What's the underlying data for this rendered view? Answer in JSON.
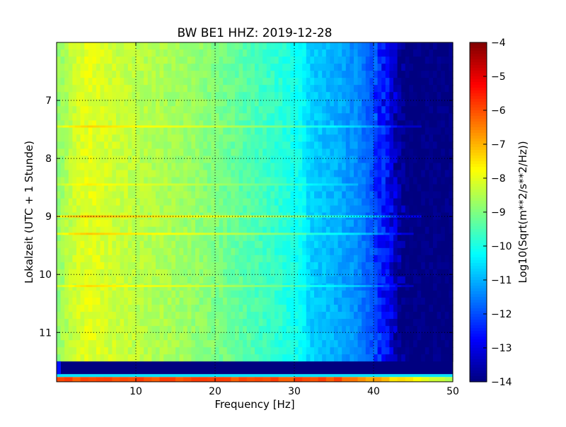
{
  "chart_data": {
    "type": "heatmap",
    "title": "BW BE1 HHZ: 2019-12-28",
    "xlabel": "Frequency [Hz]",
    "ylabel": "Lokalzeit (UTC + 1 Stunde)",
    "xlim": [
      0,
      50
    ],
    "ylim": [
      11.85,
      6.0
    ],
    "y_inverted": true,
    "x_ticks": [
      10,
      20,
      30,
      40,
      50
    ],
    "y_ticks": [
      7,
      8,
      9,
      10,
      11
    ],
    "grid": true,
    "colormap": "jet",
    "colorbar": {
      "label": "Log10(Sqrt(m**2/s**2/Hz))",
      "vmin": -14,
      "vmax": -4,
      "ticks": [
        -4,
        -5,
        -6,
        -7,
        -8,
        -9,
        -10,
        -11,
        -12,
        -13,
        -14
      ]
    },
    "spectrum_profile": {
      "frequency_hz": [
        0,
        2,
        4,
        8,
        12,
        16,
        20,
        24,
        28,
        31,
        32,
        35,
        38,
        40,
        42,
        43,
        44,
        45,
        50
      ],
      "log10_amplitude": [
        -8.9,
        -8.3,
        -8.0,
        -8.3,
        -8.5,
        -8.7,
        -9.0,
        -9.4,
        -9.8,
        -10.2,
        -10.7,
        -11.0,
        -11.4,
        -12.0,
        -12.9,
        -13.6,
        -14.0,
        -14.0,
        -14.0
      ]
    },
    "horizontal_bands": [
      {
        "time": 7.45,
        "delta": 0.7,
        "fmax": 46
      },
      {
        "time": 8.45,
        "delta": 0.4,
        "fmax": 38
      },
      {
        "time": 9.0,
        "delta": 1.1,
        "fmax": 46
      },
      {
        "time": 9.3,
        "delta": 0.8,
        "fmax": 45
      },
      {
        "time": 10.2,
        "delta": 0.6,
        "fmax": 45
      }
    ],
    "gap": {
      "time_start": 11.5,
      "time_end": 11.72,
      "log10_amplitude": -14
    },
    "bottom_row": {
      "time_start": 11.72,
      "time_end": 11.85,
      "log10_amplitude": -6
    }
  }
}
